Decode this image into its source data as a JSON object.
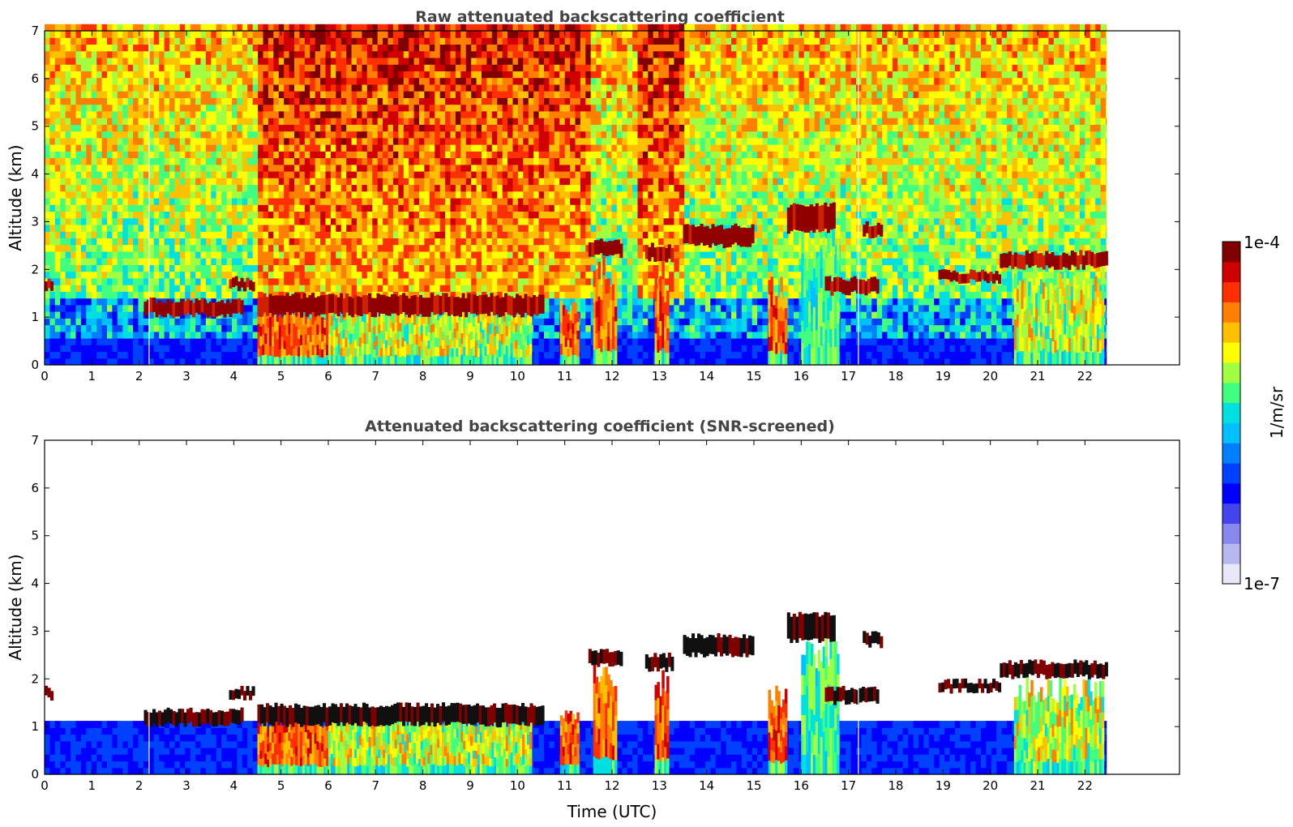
{
  "chart_data": [
    {
      "type": "heatmap",
      "title": "Raw attenuated backscattering coefficient",
      "xlabel": "",
      "ylabel": "Altitude (km)",
      "xlim": [
        0,
        24
      ],
      "ylim": [
        0,
        7
      ],
      "xticks": [
        "0",
        "1",
        "2",
        "3",
        "4",
        "5",
        "6",
        "7",
        "8",
        "9",
        "10",
        "11",
        "12",
        "13",
        "14",
        "15",
        "16",
        "17",
        "18",
        "19",
        "20",
        "21",
        "22"
      ],
      "yticks": [
        "0",
        "1",
        "2",
        "3",
        "4",
        "5",
        "6",
        "7"
      ],
      "data_end_time": 22.45,
      "screened": false,
      "cloud_layers": [
        {
          "t0": 0.0,
          "t1": 0.15,
          "base": 1.6,
          "top": 1.8
        },
        {
          "t0": 2.1,
          "t1": 4.2,
          "base": 1.05,
          "top": 1.35
        },
        {
          "t0": 3.9,
          "t1": 4.4,
          "base": 1.6,
          "top": 1.8
        },
        {
          "t0": 4.5,
          "t1": 10.5,
          "base": 1.05,
          "top": 1.45
        },
        {
          "t0": 11.5,
          "t1": 12.2,
          "base": 2.3,
          "top": 2.6
        },
        {
          "t0": 12.7,
          "t1": 13.3,
          "base": 2.2,
          "top": 2.5
        },
        {
          "t0": 13.5,
          "t1": 15.0,
          "base": 2.5,
          "top": 2.9
        },
        {
          "t0": 15.7,
          "t1": 16.7,
          "base": 2.8,
          "top": 3.35
        },
        {
          "t0": 16.5,
          "t1": 17.6,
          "base": 1.5,
          "top": 1.8
        },
        {
          "t0": 17.3,
          "t1": 17.7,
          "base": 2.7,
          "top": 2.95
        },
        {
          "t0": 18.9,
          "t1": 20.2,
          "base": 1.75,
          "top": 1.95
        },
        {
          "t0": 20.2,
          "t1": 22.45,
          "base": 2.05,
          "top": 2.35
        }
      ],
      "precip_columns": [
        {
          "t0": 4.5,
          "t1": 6.0,
          "top": 1.35,
          "intensity": "high"
        },
        {
          "t0": 6.0,
          "t1": 10.3,
          "top": 1.4,
          "intensity": "medium"
        },
        {
          "t0": 10.9,
          "t1": 11.3,
          "top": 1.4,
          "intensity": "high"
        },
        {
          "t0": 11.6,
          "t1": 12.1,
          "top": 2.3,
          "intensity": "high"
        },
        {
          "t0": 12.9,
          "t1": 13.2,
          "top": 2.2,
          "intensity": "high"
        },
        {
          "t0": 15.3,
          "t1": 15.7,
          "top": 1.9,
          "intensity": "high"
        },
        {
          "t0": 16.0,
          "t1": 16.8,
          "top": 3.0,
          "intensity": "low"
        },
        {
          "t0": 20.5,
          "t1": 22.4,
          "top": 2.1,
          "intensity": "medium"
        }
      ]
    },
    {
      "type": "heatmap",
      "title": "Attenuated backscattering coefficient (SNR-screened)",
      "xlabel": "Time (UTC)",
      "ylabel": "Altitude (km)",
      "xlim": [
        0,
        24
      ],
      "ylim": [
        0,
        7
      ],
      "xticks": [
        "0",
        "1",
        "2",
        "3",
        "4",
        "5",
        "6",
        "7",
        "8",
        "9",
        "10",
        "11",
        "12",
        "13",
        "14",
        "15",
        "16",
        "17",
        "18",
        "19",
        "20",
        "21",
        "22"
      ],
      "yticks": [
        "0",
        "1",
        "2",
        "3",
        "4",
        "5",
        "6",
        "7"
      ],
      "data_end_time": 22.45,
      "screened": true
    }
  ],
  "colorbar": {
    "label": "1/m/sr",
    "max_label": "1e-4",
    "min_label": "1e-7",
    "colors": [
      "#e8e8f8",
      "#b8b8f0",
      "#8888ee",
      "#4444ee",
      "#0000ff",
      "#0040ff",
      "#0080ff",
      "#00c0ff",
      "#00e0e0",
      "#40ff80",
      "#a0ff40",
      "#ffff00",
      "#ffc000",
      "#ff8000",
      "#ff3000",
      "#d00000",
      "#800000"
    ]
  }
}
